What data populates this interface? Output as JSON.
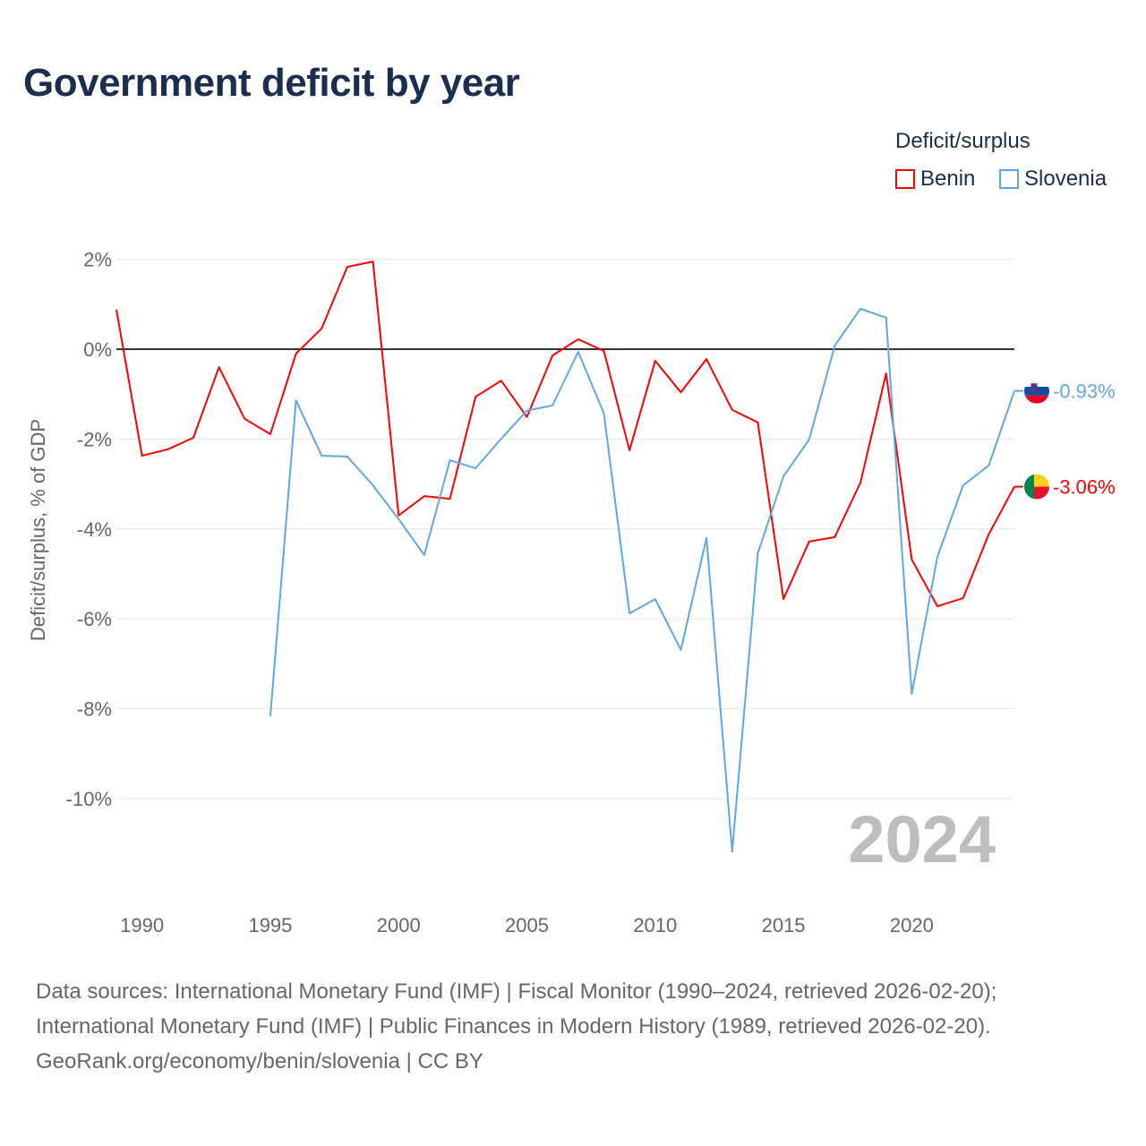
{
  "chart_data": {
    "type": "line",
    "title": "Government deficit by year",
    "ylabel": "Deficit/surplus, % of GDP",
    "xlabel": "",
    "ylim": [
      -11.5,
      2.4
    ],
    "xlim": [
      1989,
      2024
    ],
    "yticks": [
      2,
      0,
      -2,
      -4,
      -6,
      -8,
      -10
    ],
    "ytick_labels": [
      "2%",
      "0%",
      "-2%",
      "-4%",
      "-6%",
      "-8%",
      "-10%"
    ],
    "xticks": [
      1990,
      1995,
      2000,
      2005,
      2010,
      2015,
      2020
    ],
    "xtick_labels": [
      "1990",
      "1995",
      "2000",
      "2005",
      "2010",
      "2015",
      "2020"
    ],
    "grid": true,
    "legend_title": "Deficit/surplus",
    "legend_position": "top-right",
    "year_watermark": "2024",
    "series": [
      {
        "name": "Benin",
        "color": "#ff0000",
        "end_label": "-3.06%",
        "x": [
          1989,
          1990,
          1991,
          1992,
          1993,
          1994,
          1995,
          1996,
          1997,
          1998,
          1999,
          2000,
          2001,
          2002,
          2003,
          2004,
          2005,
          2006,
          2007,
          2008,
          2009,
          2010,
          2011,
          2012,
          2013,
          2014,
          2015,
          2016,
          2017,
          2018,
          2019,
          2020,
          2021,
          2022,
          2023,
          2024
        ],
        "values": [
          0.88,
          -2.37,
          -2.23,
          -1.97,
          -0.4,
          -1.55,
          -1.89,
          -0.1,
          0.46,
          1.83,
          1.95,
          -3.7,
          -3.27,
          -3.33,
          -1.06,
          -0.7,
          -1.51,
          -0.14,
          0.22,
          -0.04,
          -2.25,
          -0.26,
          -0.96,
          -0.22,
          -1.35,
          -1.63,
          -5.56,
          -4.28,
          -4.18,
          -2.97,
          -0.54,
          -4.68,
          -5.72,
          -5.54,
          -4.12,
          -3.06
        ]
      },
      {
        "name": "Slovenia",
        "color": "#5da7ea",
        "end_label": "-0.93%",
        "x": [
          1995,
          1996,
          1997,
          1998,
          1999,
          2000,
          2001,
          2002,
          2003,
          2004,
          2005,
          2006,
          2007,
          2008,
          2009,
          2010,
          2011,
          2012,
          2013,
          2014,
          2015,
          2016,
          2017,
          2018,
          2019,
          2020,
          2021,
          2022,
          2023,
          2024
        ],
        "values": [
          -8.17,
          -1.14,
          -2.37,
          -2.39,
          -3.03,
          -3.78,
          -4.58,
          -2.47,
          -2.65,
          -1.99,
          -1.37,
          -1.25,
          -0.06,
          -1.43,
          -5.88,
          -5.56,
          -6.69,
          -4.2,
          -11.18,
          -4.54,
          -2.83,
          -2.01,
          0.08,
          0.9,
          0.7,
          -7.67,
          -4.62,
          -3.03,
          -2.59,
          -0.93
        ]
      }
    ]
  },
  "footer": {
    "line1": "Data sources: International Monetary Fund (IMF) | Fiscal Monitor (1990–2024, retrieved 2026-02-20);",
    "line2": "International Monetary Fund (IMF) | Public Finances in Modern History (1989, retrieved 2026-02-20).",
    "line3": "GeoRank.org/economy/benin/slovenia | CC BY"
  }
}
